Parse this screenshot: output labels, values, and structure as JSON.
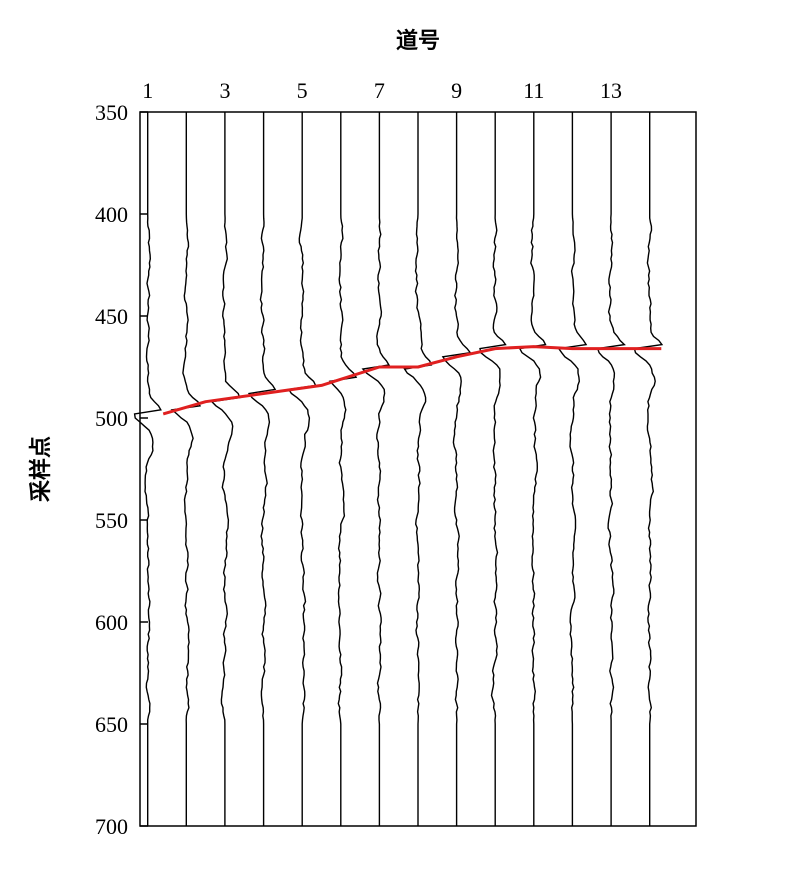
{
  "chart_data": {
    "type": "line",
    "title": "",
    "xlabel": "道号",
    "ylabel": "采样点",
    "x_axis_position": "top",
    "y_inverted": true,
    "xlim": [
      0.8,
      15.2
    ],
    "ylim": [
      350,
      700
    ],
    "x_ticks": [
      1,
      3,
      5,
      7,
      9,
      11,
      13
    ],
    "x_tick_labels": [
      "1",
      "3",
      "5",
      "7",
      "9",
      "11",
      "13"
    ],
    "y_ticks": [
      350,
      400,
      450,
      500,
      550,
      600,
      650,
      700
    ],
    "y_tick_labels": [
      "350",
      "400",
      "450",
      "500",
      "550",
      "600",
      "650",
      "700"
    ],
    "traces": [
      1,
      2,
      3,
      4,
      5,
      6,
      7,
      8,
      9,
      10,
      11,
      12,
      13,
      14
    ],
    "trace_signal_window": [
      400,
      650
    ],
    "pick_line": {
      "color": "#e02020",
      "x": [
        1.4,
        2.5,
        4.0,
        5.5,
        7.0,
        8.0,
        9.0,
        10.0,
        11.0,
        12.0,
        13.0,
        14.3
      ],
      "y": [
        498,
        492,
        488,
        484,
        475,
        475,
        470,
        466,
        465,
        466,
        466,
        466
      ]
    },
    "trace_color": "#000000",
    "grid": false,
    "legend": "none"
  }
}
